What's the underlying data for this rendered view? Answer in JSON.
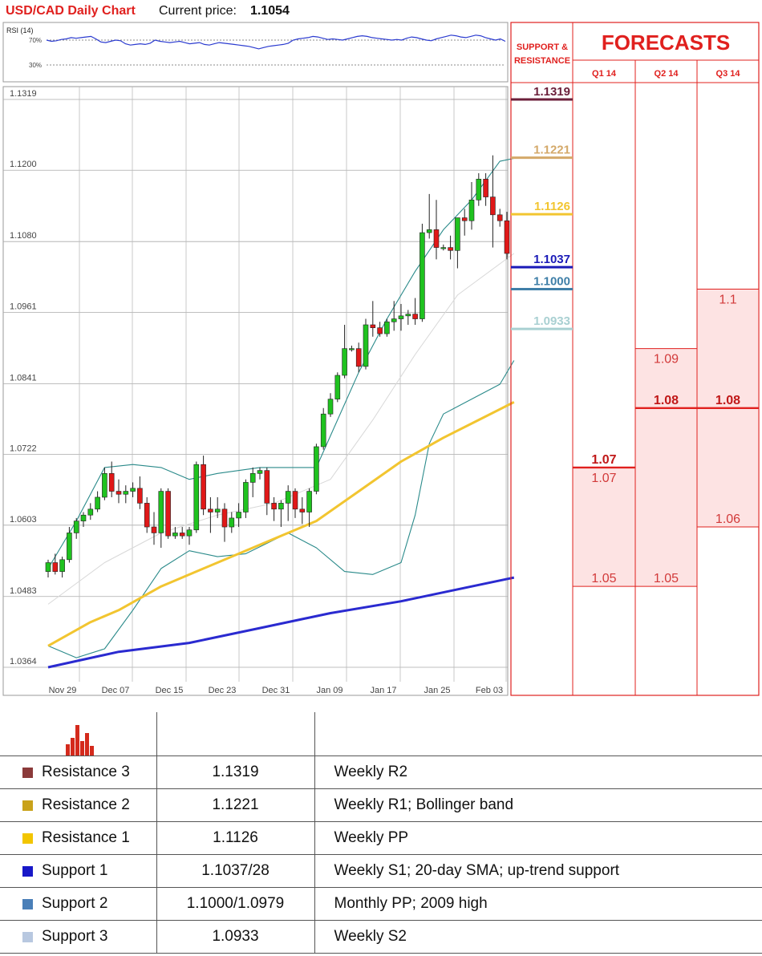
{
  "header": {
    "title": "USD/CAD Daily Chart",
    "price_label": "Current price:",
    "price_value": "1.1054"
  },
  "rsi": {
    "label": "RSI (14)",
    "levels": [
      "70%",
      "30%"
    ],
    "values": [
      70,
      68,
      69,
      71,
      72,
      74,
      73,
      74,
      75,
      76,
      72,
      67,
      66,
      68,
      70,
      69,
      64,
      62,
      63,
      64,
      63,
      65,
      70,
      68,
      67,
      66,
      67,
      68,
      66,
      64,
      65,
      66,
      63,
      62,
      64,
      66,
      65,
      64,
      63,
      62,
      61,
      60,
      58,
      56,
      58,
      60,
      61,
      62,
      63,
      65,
      70,
      72,
      73,
      74,
      76,
      75,
      73,
      71,
      72,
      71,
      70,
      72,
      74,
      76,
      77,
      76,
      74,
      73,
      72,
      71,
      70,
      71,
      70,
      73,
      75,
      74,
      72,
      70,
      69,
      72,
      74,
      76,
      78,
      77,
      75,
      74,
      76,
      78,
      77,
      74,
      72,
      70,
      72,
      68
    ]
  },
  "chart_data": {
    "type": "candlestick",
    "title": "USD/CAD Daily Chart",
    "y_ticks": [
      "1.1319",
      "1.1200",
      "1.1080",
      "1.0961",
      "1.0841",
      "1.0722",
      "1.0603",
      "1.0483",
      "1.0364"
    ],
    "ylim": [
      1.0364,
      1.1319
    ],
    "x_ticks": [
      "Nov 29",
      "Dec 07",
      "Dec 15",
      "Dec 23",
      "Dec 31",
      "Jan 09",
      "Jan 17",
      "Jan 25",
      "Feb 03"
    ],
    "grid": true,
    "candles": [
      [
        1.0525,
        1.0545,
        1.0515,
        1.054
      ],
      [
        1.054,
        1.0555,
        1.052,
        1.0525
      ],
      [
        1.0525,
        1.055,
        1.0515,
        1.0545
      ],
      [
        1.0545,
        1.06,
        1.054,
        1.059
      ],
      [
        1.059,
        1.0615,
        1.058,
        1.061
      ],
      [
        1.061,
        1.0625,
        1.06,
        1.062
      ],
      [
        1.062,
        1.064,
        1.0612,
        1.063
      ],
      [
        1.063,
        1.066,
        1.0625,
        1.065
      ],
      [
        1.065,
        1.07,
        1.0645,
        1.069
      ],
      [
        1.069,
        1.071,
        1.065,
        1.066
      ],
      [
        1.066,
        1.068,
        1.064,
        1.0655
      ],
      [
        1.0655,
        1.067,
        1.064,
        1.066
      ],
      [
        1.066,
        1.0675,
        1.065,
        1.0665
      ],
      [
        1.0665,
        1.0685,
        1.063,
        1.064
      ],
      [
        1.064,
        1.065,
        1.059,
        1.06
      ],
      [
        1.06,
        1.0625,
        1.057,
        1.059
      ],
      [
        1.059,
        1.0665,
        1.0565,
        1.066
      ],
      [
        1.066,
        1.0665,
        1.058,
        1.0585
      ],
      [
        1.0585,
        1.06,
        1.058,
        1.059
      ],
      [
        1.059,
        1.06,
        1.058,
        1.0585
      ],
      [
        1.0585,
        1.06,
        1.057,
        1.0595
      ],
      [
        1.0595,
        1.071,
        1.059,
        1.0705
      ],
      [
        1.0705,
        1.072,
        1.062,
        1.063
      ],
      [
        1.063,
        1.065,
        1.059,
        1.0625
      ],
      [
        1.0625,
        1.065,
        1.0615,
        1.063
      ],
      [
        1.063,
        1.064,
        1.0575,
        1.06
      ],
      [
        1.06,
        1.0625,
        1.059,
        1.0615
      ],
      [
        1.0615,
        1.064,
        1.06,
        1.0625
      ],
      [
        1.0625,
        1.068,
        1.0615,
        1.0675
      ],
      [
        1.0675,
        1.07,
        1.065,
        1.069
      ],
      [
        1.069,
        1.07,
        1.068,
        1.0695
      ],
      [
        1.0695,
        1.07,
        1.062,
        1.064
      ],
      [
        1.064,
        1.065,
        1.061,
        1.063
      ],
      [
        1.063,
        1.0645,
        1.06,
        1.064
      ],
      [
        1.064,
        1.067,
        1.061,
        1.066
      ],
      [
        1.066,
        1.0665,
        1.0615,
        1.063
      ],
      [
        1.063,
        1.065,
        1.0605,
        1.0625
      ],
      [
        1.0625,
        1.0665,
        1.06,
        1.066
      ],
      [
        1.066,
        1.074,
        1.0655,
        1.0735
      ],
      [
        1.0735,
        1.08,
        1.073,
        1.079
      ],
      [
        1.079,
        1.0825,
        1.0785,
        1.0815
      ],
      [
        1.0815,
        1.086,
        1.081,
        1.0855
      ],
      [
        1.0855,
        1.094,
        1.085,
        1.09
      ],
      [
        1.09,
        1.0905,
        1.0895,
        1.09
      ],
      [
        1.09,
        1.091,
        1.086,
        1.087
      ],
      [
        1.087,
        1.095,
        1.0865,
        1.094
      ],
      [
        1.094,
        1.098,
        1.092,
        1.0935
      ],
      [
        1.0935,
        1.0945,
        1.092,
        1.0925
      ],
      [
        1.0925,
        1.095,
        1.092,
        1.0945
      ],
      [
        1.0945,
        1.098,
        1.093,
        1.095
      ],
      [
        1.095,
        1.0975,
        1.093,
        1.0955
      ],
      [
        1.0955,
        1.0965,
        1.094,
        1.0958
      ],
      [
        1.0958,
        1.0985,
        1.094,
        1.095
      ],
      [
        1.095,
        1.111,
        1.0945,
        1.1095
      ],
      [
        1.1095,
        1.116,
        1.1085,
        1.11
      ],
      [
        1.11,
        1.115,
        1.105,
        1.107
      ],
      [
        1.107,
        1.1075,
        1.1065,
        1.107
      ],
      [
        1.107,
        1.109,
        1.105,
        1.1065
      ],
      [
        1.1065,
        1.112,
        1.1035,
        1.112
      ],
      [
        1.112,
        1.1135,
        1.109,
        1.1115
      ],
      [
        1.1115,
        1.118,
        1.11,
        1.115
      ],
      [
        1.115,
        1.1195,
        1.114,
        1.1185
      ],
      [
        1.1185,
        1.1195,
        1.114,
        1.1155
      ],
      [
        1.1155,
        1.1225,
        1.107,
        1.1125
      ],
      [
        1.1125,
        1.1135,
        1.1105,
        1.1115
      ],
      [
        1.1115,
        1.113,
        1.105,
        1.106
      ]
    ],
    "sma_yellow": [
      [
        0,
        1.04
      ],
      [
        6,
        1.044
      ],
      [
        10,
        1.046
      ],
      [
        16,
        1.05
      ],
      [
        22,
        1.053
      ],
      [
        30,
        1.057
      ],
      [
        38,
        1.061
      ],
      [
        44,
        1.066
      ],
      [
        50,
        1.071
      ],
      [
        56,
        1.075
      ],
      [
        61,
        1.078
      ],
      [
        66,
        1.081
      ]
    ],
    "sma_blue": [
      [
        0,
        1.0364
      ],
      [
        10,
        1.039
      ],
      [
        20,
        1.0405
      ],
      [
        30,
        1.043
      ],
      [
        40,
        1.0455
      ],
      [
        50,
        1.0475
      ],
      [
        60,
        1.05
      ],
      [
        66,
        1.0515
      ]
    ],
    "sma_gray": [
      [
        0,
        1.047
      ],
      [
        8,
        1.054
      ],
      [
        16,
        1.059
      ],
      [
        24,
        1.062
      ],
      [
        32,
        1.064
      ],
      [
        40,
        1.068
      ],
      [
        46,
        1.078
      ],
      [
        52,
        1.089
      ],
      [
        58,
        1.099
      ],
      [
        66,
        1.106
      ]
    ],
    "bb_upper": [
      [
        0,
        1.053
      ],
      [
        4,
        1.061
      ],
      [
        8,
        1.07
      ],
      [
        12,
        1.0705
      ],
      [
        16,
        1.07
      ],
      [
        20,
        1.068
      ],
      [
        24,
        1.069
      ],
      [
        30,
        1.07
      ],
      [
        38,
        1.07
      ],
      [
        44,
        1.086
      ],
      [
        48,
        1.095
      ],
      [
        52,
        1.103
      ],
      [
        56,
        1.11
      ],
      [
        60,
        1.115
      ],
      [
        64,
        1.1215
      ],
      [
        66,
        1.122
      ]
    ],
    "bb_lower": [
      [
        0,
        1.04
      ],
      [
        4,
        1.038
      ],
      [
        8,
        1.0395
      ],
      [
        12,
        1.046
      ],
      [
        16,
        1.053
      ],
      [
        20,
        1.056
      ],
      [
        24,
        1.055
      ],
      [
        28,
        1.0555
      ],
      [
        34,
        1.059
      ],
      [
        38,
        1.0565
      ],
      [
        42,
        1.0525
      ],
      [
        46,
        1.052
      ],
      [
        50,
        1.054
      ],
      [
        52,
        1.062
      ],
      [
        54,
        1.074
      ],
      [
        56,
        1.079
      ],
      [
        60,
        1.0815
      ],
      [
        64,
        1.084
      ],
      [
        66,
        1.088
      ]
    ]
  },
  "support_resistance": {
    "header_line1": "SUPPORT &",
    "header_line2": "RESISTANCE",
    "levels": [
      {
        "label": "1.1319",
        "value": 1.1319,
        "color": "#6b1f3a"
      },
      {
        "label": "1.1221",
        "value": 1.1221,
        "color": "#d4a96a"
      },
      {
        "label": "1.1126",
        "value": 1.1126,
        "color": "#f2c530"
      },
      {
        "label": "1.1037",
        "value": 1.1037,
        "color": "#1a1ab8"
      },
      {
        "label": "1.1000",
        "value": 1.1,
        "color": "#3f7fa8"
      },
      {
        "label": "1.0933",
        "value": 1.0933,
        "color": "#a9d0d2"
      }
    ]
  },
  "forecasts": {
    "title": "FORECASTS",
    "quarters": [
      {
        "label": "Q1 14",
        "high": 1.07,
        "low": 1.05,
        "mid": 1.07,
        "high_label": "1.07",
        "mid_label": "1.07",
        "low_label": "1.05"
      },
      {
        "label": "Q2 14",
        "high": 1.09,
        "low": 1.05,
        "mid": 1.08,
        "high_label": "1.09",
        "mid_label": "1.08",
        "low_label": "1.05"
      },
      {
        "label": "Q3 14",
        "high": 1.1,
        "low": 1.06,
        "mid": 1.08,
        "high_label": "1.1",
        "mid_label": "1.08",
        "low_label": "1.06"
      }
    ]
  },
  "levels_table": {
    "rows": [
      {
        "name": "Resistance 3",
        "value": "1.1319",
        "note": "Weekly R2",
        "color": "#8b3a3a"
      },
      {
        "name": "Resistance 2",
        "value": "1.1221",
        "note": "Weekly R1; Bollinger band",
        "color": "#c9a21a"
      },
      {
        "name": "Resistance 1",
        "value": "1.1126",
        "note": "Weekly PP",
        "color": "#f2c500"
      },
      {
        "name": "Support 1",
        "value": "1.1037/28",
        "note": "Weekly S1; 20-day SMA; up-trend support",
        "color": "#1818c8"
      },
      {
        "name": "Support 2",
        "value": "1.1000/1.0979",
        "note": "Monthly PP; 2009 high",
        "color": "#4a7fb8"
      },
      {
        "name": "Support 3",
        "value": "1.0933",
        "note": "Weekly S2",
        "color": "#b8c8e0"
      }
    ]
  }
}
